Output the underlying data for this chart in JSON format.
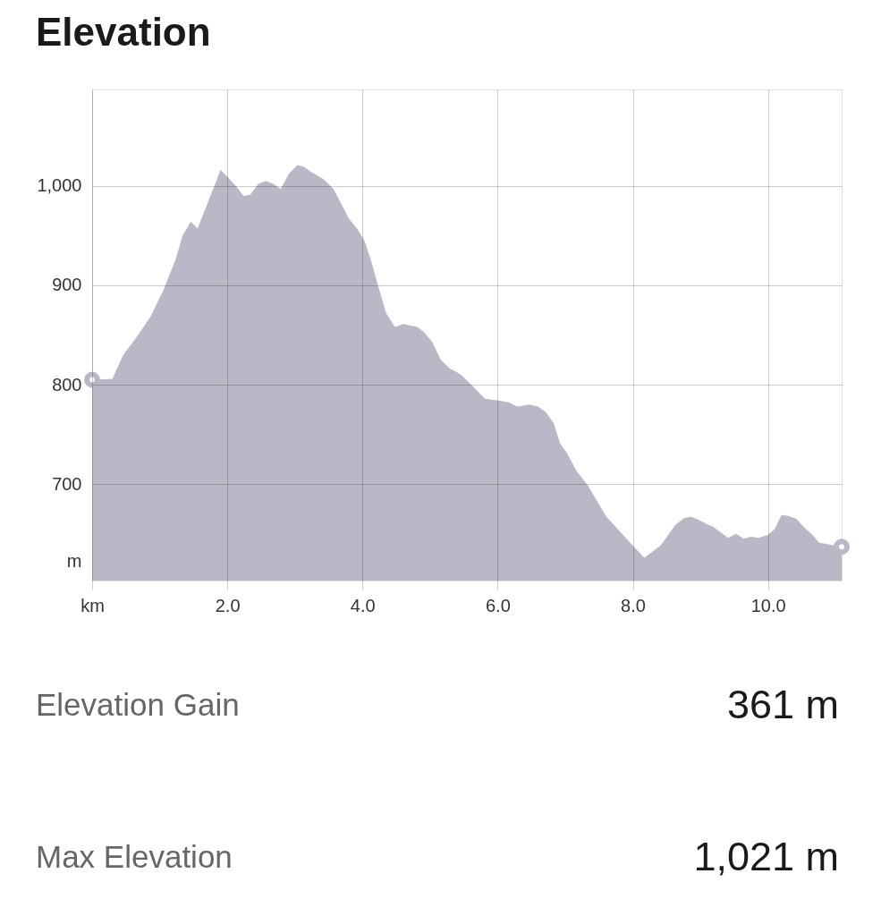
{
  "chart_data": {
    "type": "area",
    "title": "Elevation",
    "ylabel": "m",
    "xlim": [
      0,
      11.09
    ],
    "ylim": [
      603,
      1097
    ],
    "xticks": [
      {
        "value": 0,
        "label": "km"
      },
      {
        "value": 2,
        "label": "2.0"
      },
      {
        "value": 4,
        "label": "4.0"
      },
      {
        "value": 6,
        "label": "6.0"
      },
      {
        "value": 8,
        "label": "8.0"
      },
      {
        "value": 10,
        "label": "10.0"
      }
    ],
    "yticks": [
      700,
      800,
      900,
      {
        "value": 1000,
        "label": "1,000"
      }
    ],
    "grid": true,
    "series": [
      {
        "color": "#b8b8c6",
        "x": [
          0,
          0.3,
          0.46,
          0.66,
          0.86,
          1.06,
          1.24,
          1.34,
          1.46,
          1.56,
          1.67,
          1.9,
          2.03,
          2.14,
          2.24,
          2.34,
          2.46,
          2.57,
          2.68,
          2.79,
          2.91,
          3.04,
          3.14,
          3.24,
          3.42,
          3.57,
          3.67,
          3.8,
          3.92,
          4.03,
          4.13,
          4.23,
          4.35,
          4.48,
          4.6,
          4.81,
          4.91,
          5.03,
          5.16,
          5.28,
          5.46,
          5.61,
          5.81,
          6.02,
          6.17,
          6.29,
          6.47,
          6.6,
          6.72,
          6.83,
          6.93,
          7.02,
          7.17,
          7.33,
          7.61,
          7.72,
          8.0,
          8.17,
          8.41,
          8.63,
          8.76,
          8.86,
          8.98,
          9.09,
          9.19,
          9.29,
          9.41,
          9.53,
          9.64,
          9.75,
          9.86,
          10.0,
          10.1,
          10.2,
          10.3,
          10.42,
          10.53,
          10.66,
          10.76,
          10.86,
          11.09
        ],
        "values": [
          805,
          806,
          830,
          848,
          868,
          896,
          927,
          950,
          964,
          957,
          976,
          1016,
          1007,
          999,
          990,
          991,
          1002,
          1005,
          1002,
          997,
          1012,
          1021,
          1019,
          1014,
          1007,
          997,
          984,
          967,
          957,
          945,
          924,
          900,
          872,
          858,
          861,
          858,
          853,
          843,
          825,
          817,
          810,
          800,
          786,
          784,
          782,
          778,
          780,
          778,
          772,
          761,
          740,
          732,
          713,
          699,
          667,
          659,
          638,
          626,
          638,
          659,
          666,
          667,
          664,
          660,
          657,
          652,
          646,
          650,
          645,
          647,
          646,
          649,
          655,
          669,
          668,
          665,
          657,
          649,
          641,
          640,
          637
        ]
      },
      {
        "type": "scatter",
        "color": "#b8b8c6",
        "marker": "circle",
        "x": [
          0,
          11.09
        ],
        "values": [
          805,
          637
        ]
      }
    ],
    "annotations": [
      "Elevation Gain",
      "361 m",
      "Max Elevation",
      "1,021 m"
    ]
  }
}
